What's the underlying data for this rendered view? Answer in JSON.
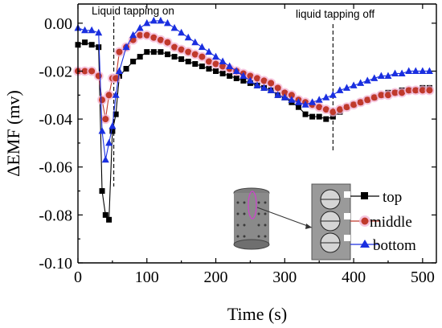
{
  "chart_data": {
    "type": "line",
    "xlabel": "Time (s)",
    "ylabel": "ΔEMF (mv)",
    "xlim": [
      0,
      520
    ],
    "ylim": [
      -0.1,
      0.008
    ],
    "xticks": [
      0,
      100,
      200,
      300,
      400,
      500
    ],
    "xtick_labels": [
      "0",
      "100",
      "200",
      "300",
      "400",
      "500"
    ],
    "yticks": [
      0.0,
      -0.02,
      -0.04,
      -0.06,
      -0.08,
      -0.1
    ],
    "ytick_labels": [
      "0.00",
      "-0.02",
      "-0.04",
      "-0.06",
      "-0.08",
      "-0.10"
    ],
    "grid": false,
    "annotations": [
      {
        "text": "Liquid tapping on",
        "x": 52
      },
      {
        "text": "liquid tapping off",
        "x": 370
      }
    ],
    "legend": {
      "position": "bottom-right"
    },
    "series": [
      {
        "name": "top",
        "color": "#000000",
        "marker": "square",
        "x": [
          0,
          10,
          20,
          30,
          35,
          40,
          45,
          50,
          55,
          60,
          70,
          80,
          90,
          100,
          110,
          120,
          130,
          140,
          150,
          160,
          170,
          180,
          190,
          200,
          210,
          220,
          230,
          240,
          250,
          260,
          270,
          280,
          290,
          300,
          310,
          320,
          330,
          340,
          350,
          360,
          370,
          380,
          390,
          400,
          410,
          420,
          430,
          440,
          450,
          460,
          470,
          480,
          490,
          500,
          510
        ],
        "y": [
          -0.009,
          -0.008,
          -0.009,
          -0.01,
          -0.07,
          -0.08,
          -0.082,
          -0.045,
          -0.038,
          -0.022,
          -0.019,
          -0.016,
          -0.014,
          -0.012,
          -0.012,
          -0.012,
          -0.013,
          -0.014,
          -0.015,
          -0.016,
          -0.017,
          -0.018,
          -0.019,
          -0.02,
          -0.021,
          -0.022,
          -0.023,
          -0.024,
          -0.025,
          -0.026,
          -0.027,
          -0.028,
          -0.03,
          -0.031,
          -0.033,
          -0.035,
          -0.038,
          -0.039,
          -0.039,
          -0.04,
          -0.039,
          -0.037,
          -0.035,
          -0.034,
          -0.033,
          -0.032,
          -0.031,
          -0.03,
          -0.029,
          -0.029,
          -0.028,
          -0.028,
          -0.028,
          -0.027,
          -0.027
        ]
      },
      {
        "name": "middle",
        "color": "#c0392b",
        "marker": "circle",
        "x": [
          0,
          10,
          20,
          30,
          35,
          40,
          45,
          50,
          55,
          60,
          70,
          80,
          90,
          100,
          110,
          120,
          130,
          140,
          150,
          160,
          170,
          180,
          190,
          200,
          210,
          220,
          230,
          240,
          250,
          260,
          270,
          280,
          290,
          300,
          310,
          320,
          330,
          340,
          350,
          360,
          370,
          380,
          390,
          400,
          410,
          420,
          430,
          440,
          450,
          460,
          470,
          480,
          490,
          500,
          510
        ],
        "y": [
          -0.02,
          -0.02,
          -0.02,
          -0.022,
          -0.032,
          -0.04,
          -0.03,
          -0.023,
          -0.023,
          -0.012,
          -0.01,
          -0.007,
          -0.005,
          -0.005,
          -0.006,
          -0.007,
          -0.008,
          -0.01,
          -0.011,
          -0.012,
          -0.013,
          -0.014,
          -0.016,
          -0.017,
          -0.018,
          -0.019,
          -0.02,
          -0.021,
          -0.022,
          -0.023,
          -0.024,
          -0.025,
          -0.027,
          -0.029,
          -0.03,
          -0.032,
          -0.033,
          -0.034,
          -0.035,
          -0.036,
          -0.037,
          -0.036,
          -0.035,
          -0.034,
          -0.033,
          -0.032,
          -0.031,
          -0.03,
          -0.03,
          -0.029,
          -0.029,
          -0.028,
          -0.028,
          -0.028,
          -0.028
        ]
      },
      {
        "name": "bottom",
        "color": "#1a2fe0",
        "marker": "triangle",
        "x": [
          0,
          10,
          20,
          30,
          35,
          40,
          45,
          50,
          55,
          60,
          70,
          80,
          90,
          100,
          110,
          120,
          130,
          140,
          150,
          160,
          170,
          180,
          190,
          200,
          210,
          220,
          230,
          240,
          250,
          260,
          270,
          280,
          290,
          300,
          310,
          320,
          330,
          340,
          350,
          360,
          370,
          380,
          390,
          400,
          410,
          420,
          430,
          440,
          450,
          460,
          470,
          480,
          490,
          500,
          510
        ],
        "y": [
          -0.002,
          -0.003,
          -0.003,
          -0.004,
          -0.045,
          -0.057,
          -0.05,
          -0.043,
          -0.03,
          -0.02,
          -0.01,
          -0.005,
          -0.002,
          0.0,
          0.001,
          0.001,
          0.0,
          -0.002,
          -0.004,
          -0.006,
          -0.008,
          -0.01,
          -0.012,
          -0.014,
          -0.016,
          -0.018,
          -0.02,
          -0.022,
          -0.024,
          -0.026,
          -0.027,
          -0.028,
          -0.03,
          -0.031,
          -0.032,
          -0.033,
          -0.034,
          -0.033,
          -0.032,
          -0.031,
          -0.03,
          -0.028,
          -0.027,
          -0.026,
          -0.025,
          -0.024,
          -0.023,
          -0.022,
          -0.022,
          -0.021,
          -0.021,
          -0.02,
          -0.02,
          -0.02,
          -0.02
        ]
      }
    ]
  },
  "legend_labels": [
    "top",
    "middle",
    "bottom"
  ],
  "colors": {
    "top": "#000000",
    "middle": "#c0392b",
    "middle_glow": "#f3b6d6",
    "bottom": "#1a2fe0"
  },
  "inset": {
    "description_icon": "cylinder-with-holes-and-cross-section"
  }
}
